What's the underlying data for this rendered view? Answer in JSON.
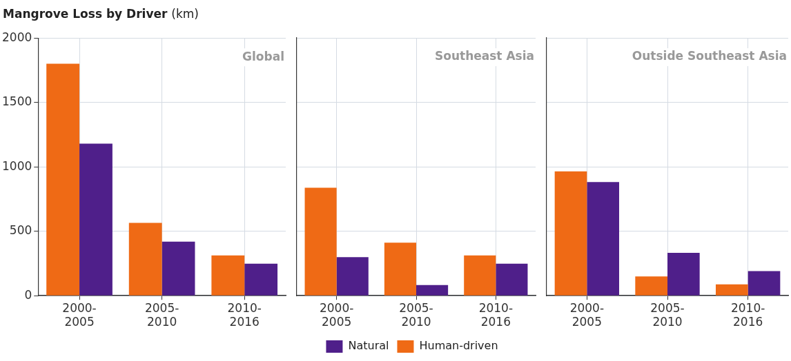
{
  "chart_data": [
    {
      "type": "bar",
      "title": "Mangrove Loss by Driver (km)",
      "categories": [
        "2000-\n2005",
        "2005-\n2010",
        "2010-\n2016"
      ],
      "series": [
        {
          "color": "#ef6a15",
          "values": [
            1800,
            565,
            312
          ]
        },
        {
          "color": "#4f1f8a",
          "values": [
            1180,
            420,
            248
          ]
        }
      ],
      "ylim": [
        0,
        2000
      ],
      "yticks": [
        0,
        500,
        1000,
        1500,
        2000
      ],
      "grid": true,
      "annotations": [
        "Global"
      ]
    },
    {
      "type": "bar",
      "categories": [
        "2000-\n2005",
        "2005-\n2010",
        "2010-\n2016"
      ],
      "series": [
        {
          "name": "Human-driven",
          "color": "#ef6a15",
          "values": [
            838,
            411,
            312
          ]
        },
        {
          "name": "Natural",
          "color": "#4f1f8a",
          "values": [
            299,
            83,
            248
          ]
        }
      ],
      "ylim": [
        0,
        2000
      ],
      "yticks": [
        0,
        500,
        1000,
        1500,
        2000
      ],
      "grid": true,
      "tick_labels": "x",
      "legend": "bottom",
      "annotations": [
        "Southeast Asia"
      ]
    },
    {
      "type": "bar",
      "categories": [
        "2000-\n2005",
        "2005-\n2010",
        "2010-\n2016"
      ],
      "series": [
        {
          "color": "#ef6a15",
          "values": [
            965,
            149,
            88
          ]
        },
        {
          "color": "#4f1f8a",
          "values": [
            881,
            332,
            191
          ]
        }
      ],
      "ylim": [
        0,
        2000
      ],
      "yticks": [
        0,
        500,
        1000,
        1500,
        2000
      ],
      "grid": true,
      "tick_labels": "x",
      "annotations": [
        "Outside Southeast Asia"
      ]
    }
  ]
}
